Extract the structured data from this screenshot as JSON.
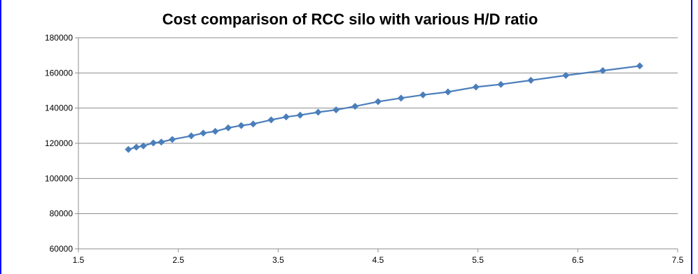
{
  "chart_data": {
    "type": "line",
    "title": "Cost comparison of RCC silo with various H/D ratio",
    "xlabel": "",
    "ylabel": "",
    "xlim": [
      1.5,
      7.5
    ],
    "ylim": [
      60000,
      180000
    ],
    "x_ticks": [
      "1.5",
      "2.5",
      "3.5",
      "4.5",
      "5.5",
      "6.5",
      "7.5"
    ],
    "y_ticks": [
      "60000",
      "80000",
      "100000",
      "120000",
      "140000",
      "160000",
      "180000"
    ],
    "grid": "horizontal",
    "legend": "none",
    "colors": {
      "series": "#4a7ebb",
      "marker": "#4a7ebb",
      "grid": "#8c8c8c",
      "axis": "#8c8c8c",
      "frame": "#0000ff"
    },
    "series": [
      {
        "marker": "diamond",
        "x": [
          2.0,
          2.08,
          2.15,
          2.25,
          2.33,
          2.44,
          2.63,
          2.75,
          2.87,
          3.0,
          3.13,
          3.25,
          3.43,
          3.58,
          3.72,
          3.9,
          4.08,
          4.27,
          4.5,
          4.73,
          4.95,
          5.2,
          5.48,
          5.73,
          6.03,
          6.38,
          6.75,
          7.12
        ],
        "y": [
          116500,
          117800,
          118500,
          120200,
          120700,
          122200,
          124200,
          125800,
          126800,
          128800,
          130100,
          131000,
          133300,
          135000,
          136000,
          137700,
          139000,
          141000,
          143700,
          145700,
          147500,
          149200,
          152000,
          153500,
          155800,
          158600,
          161300,
          164000
        ]
      }
    ]
  }
}
